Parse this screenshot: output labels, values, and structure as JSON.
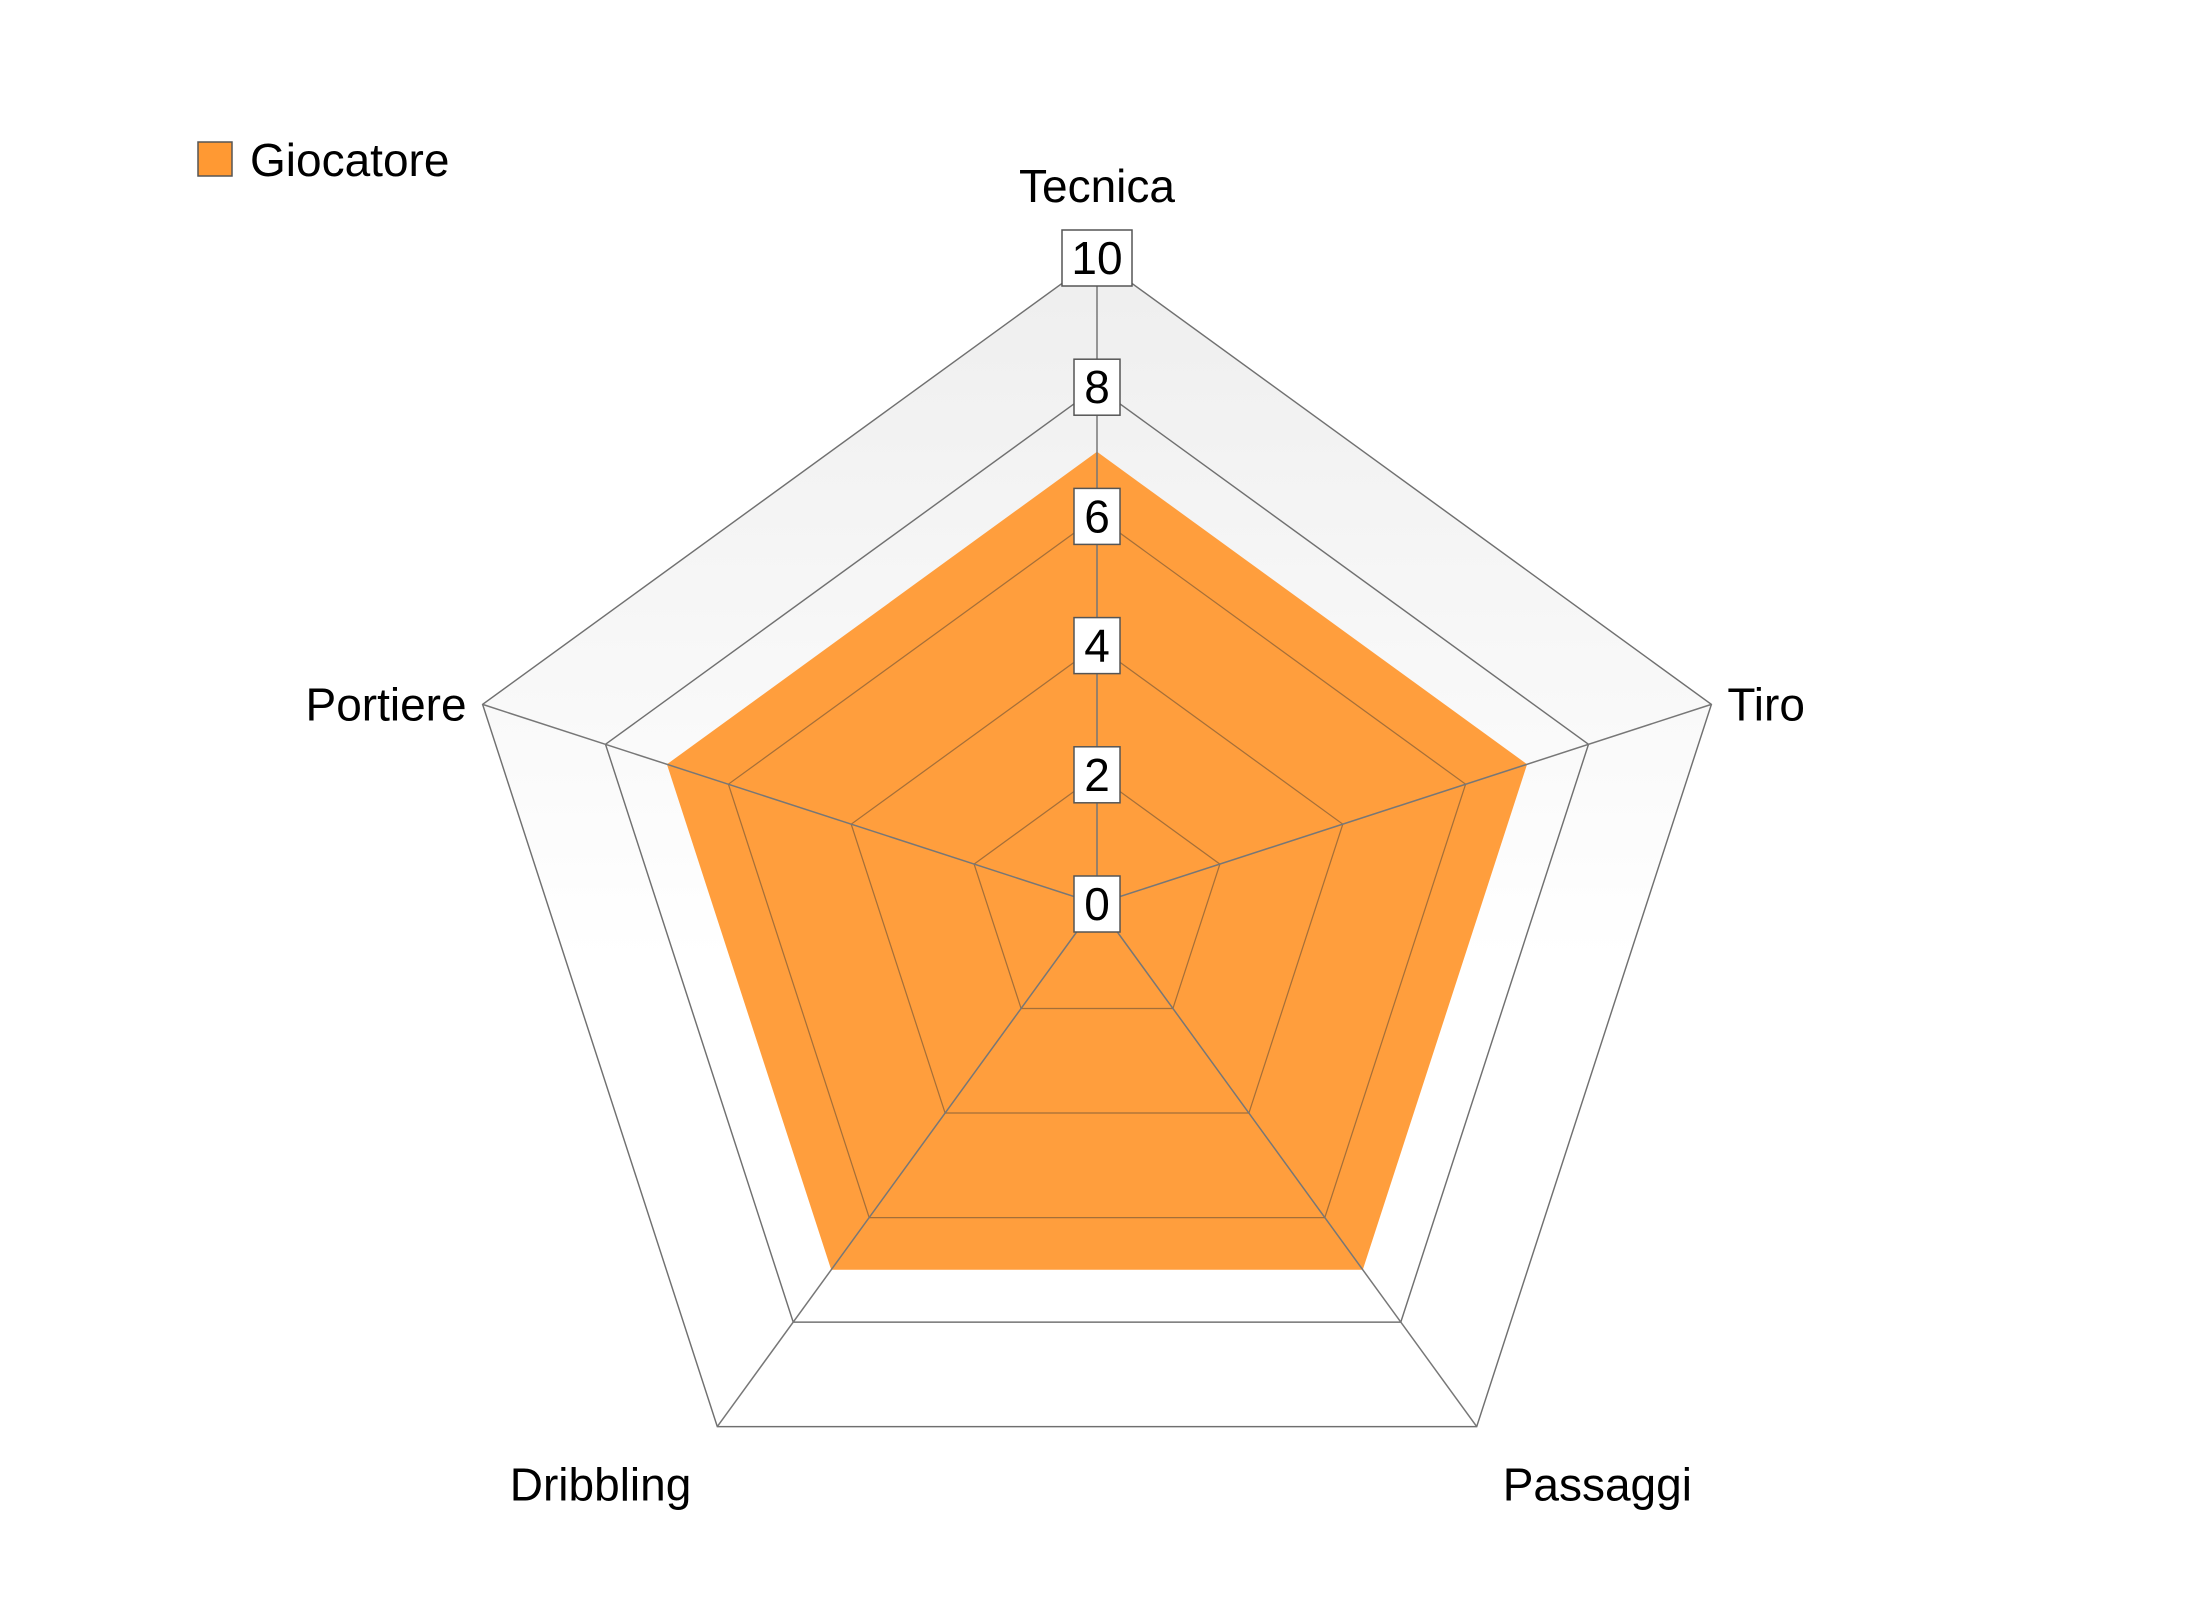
{
  "chart_data": {
    "type": "radar",
    "title": "",
    "categories": [
      "Tecnica",
      "Tiro",
      "Passaggi",
      "Dribbling",
      "Portiere"
    ],
    "series": [
      {
        "name": "Giocatore",
        "values": [
          7,
          7,
          7,
          7,
          7
        ],
        "color": "#FF9933"
      }
    ],
    "rlim": [
      0,
      10
    ],
    "ticks": [
      0,
      2,
      4,
      6,
      8,
      10
    ],
    "legend": {
      "position": "top-left"
    },
    "grid": true,
    "background_gradient": [
      "#EEEEEE",
      "#FFFFFF"
    ]
  }
}
